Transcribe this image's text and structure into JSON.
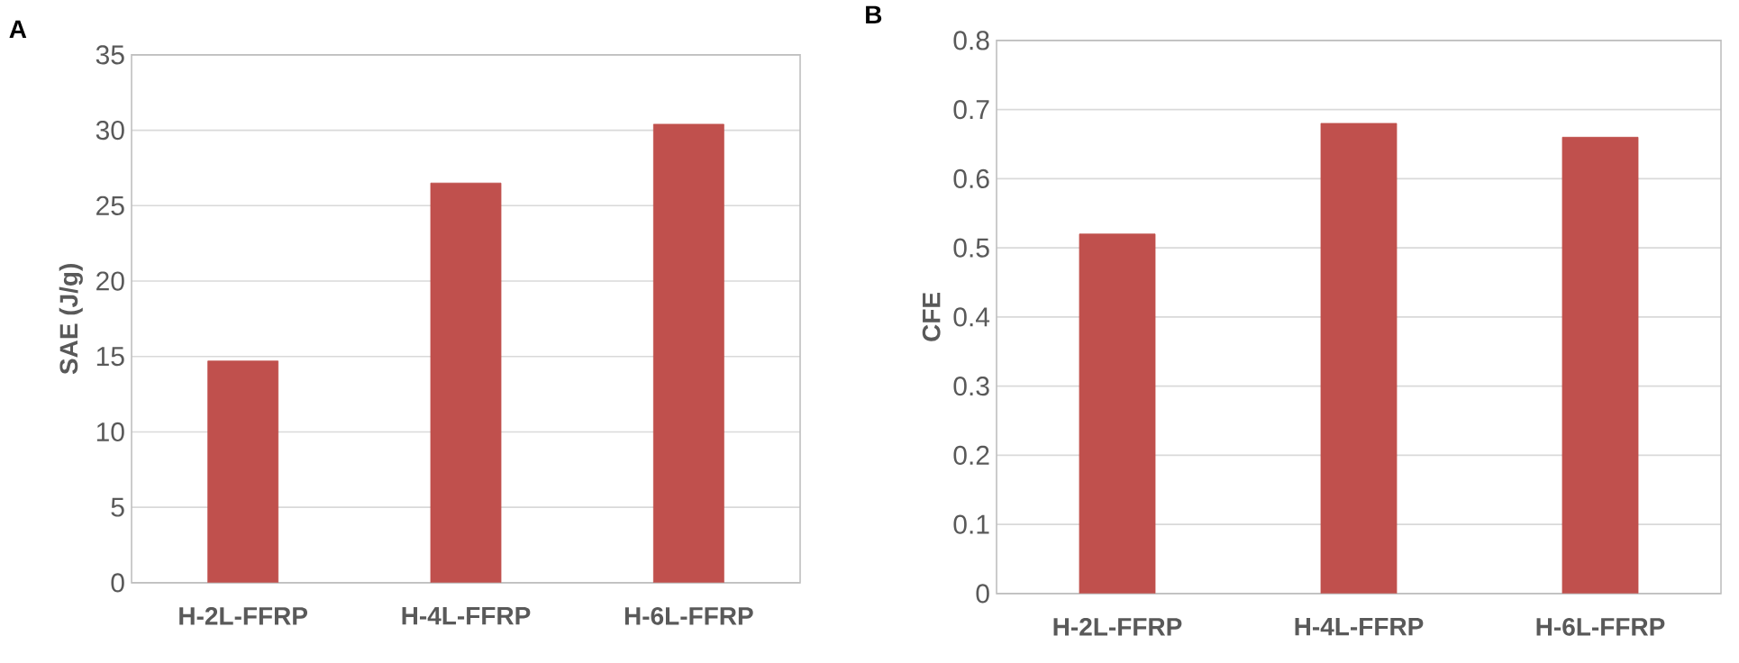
{
  "chart_data": [
    {
      "type": "bar",
      "title": "A",
      "ylabel": "SAE (J/g)",
      "categories": [
        "H-2L-FFRP",
        "H-4L-FFRP",
        "H-6L-FFRP"
      ],
      "values": [
        14.7,
        26.5,
        30.4
      ],
      "color": "#c0504d",
      "ylim": [
        0,
        35
      ],
      "yticks": [
        0,
        5,
        10,
        15,
        20,
        25,
        30,
        35
      ],
      "grid": "y"
    },
    {
      "type": "bar",
      "title": "B",
      "ylabel": "CFE",
      "categories": [
        "H-2L-FFRP",
        "H-4L-FFRP",
        "H-6L-FFRP"
      ],
      "values": [
        0.52,
        0.68,
        0.66
      ],
      "color": "#c0504d",
      "ylim": [
        0,
        0.8
      ],
      "yticks": [
        0,
        0.1,
        0.2,
        0.3,
        0.4,
        0.5,
        0.6,
        0.7,
        0.8
      ],
      "grid": "y"
    }
  ]
}
